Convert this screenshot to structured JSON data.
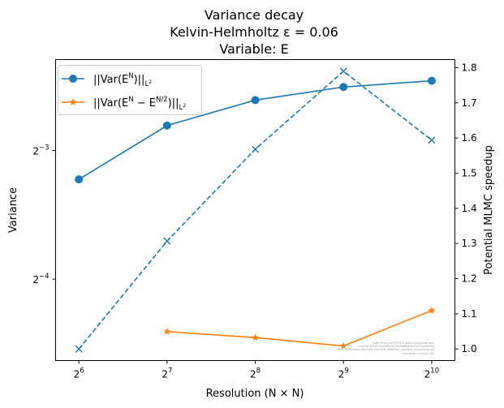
{
  "chart_data": {
    "type": "line",
    "title_lines": [
      "Variance decay",
      "Kelvin-Helmholtz ε = 0.06",
      "Variable: E"
    ],
    "xlabel": "Resolution (N × N)",
    "ylabel_left": "Variance",
    "ylabel_right": "Potential MLMC speedup",
    "x_scale": "log2",
    "x_ticks": [
      64,
      128,
      256,
      512,
      1024
    ],
    "x_tick_labels": [
      {
        "base": "2",
        "exp": "6"
      },
      {
        "base": "2",
        "exp": "7"
      },
      {
        "base": "2",
        "exp": "8"
      },
      {
        "base": "2",
        "exp": "9"
      },
      {
        "base": "2",
        "exp": "10"
      }
    ],
    "y_left_scale": "log2",
    "y_left_ticks": [
      0.0625,
      0.125
    ],
    "y_left_tick_labels": [
      {
        "base": "2",
        "exp": "−4"
      },
      {
        "base": "2",
        "exp": "−3"
      }
    ],
    "y_left_lim": [
      0.0403,
      0.204
    ],
    "y_right_lim": [
      0.967,
      1.823
    ],
    "y_right_ticks": [
      1.0,
      1.1,
      1.2,
      1.3,
      1.4,
      1.5,
      1.6,
      1.7,
      1.8
    ],
    "y_right_tick_labels": [
      "1.0",
      "1.1",
      "1.2",
      "1.3",
      "1.4",
      "1.5",
      "1.6",
      "1.7",
      "1.8"
    ],
    "x_lim": [
      53.3,
      1229
    ],
    "series": [
      {
        "name": "||Var(E^N)||_{L^2}",
        "legend_parts": {
          "pre": "||Var(",
          "base": "E",
          "sup": "N",
          "post": ")||",
          "sub": "L",
          "subsup": "2"
        },
        "axis": "left",
        "color": "#1f77b4",
        "marker": "circle",
        "linestyle": "solid",
        "x": [
          64,
          128,
          256,
          512,
          1024
        ],
        "y": [
          0.107,
          0.143,
          0.164,
          0.176,
          0.182
        ]
      },
      {
        "name": "||Var(E^N − E^{N/2})||_{L^2}",
        "legend_parts": {
          "pre": "||Var(",
          "base": "E",
          "sup": "N",
          "mid": " − ",
          "base2": "E",
          "sup2": "N/2",
          "post": ")||",
          "sub": "L",
          "subsup": "2"
        },
        "axis": "left",
        "color": "#ff7f0e",
        "marker": "star",
        "linestyle": "solid",
        "x": [
          128,
          256,
          512,
          1024
        ],
        "y": [
          0.0471,
          0.0456,
          0.0436,
          0.0528
        ]
      },
      {
        "name": "",
        "axis": "right",
        "color": "#1f77b4",
        "marker": "x",
        "linestyle": "dashed",
        "x": [
          64,
          128,
          256,
          512,
          1024
        ],
        "y": [
          1.0,
          1.307,
          1.568,
          1.79,
          1.594
        ]
      }
    ],
    "legend_placement": "upper-left",
    "grid": false
  }
}
